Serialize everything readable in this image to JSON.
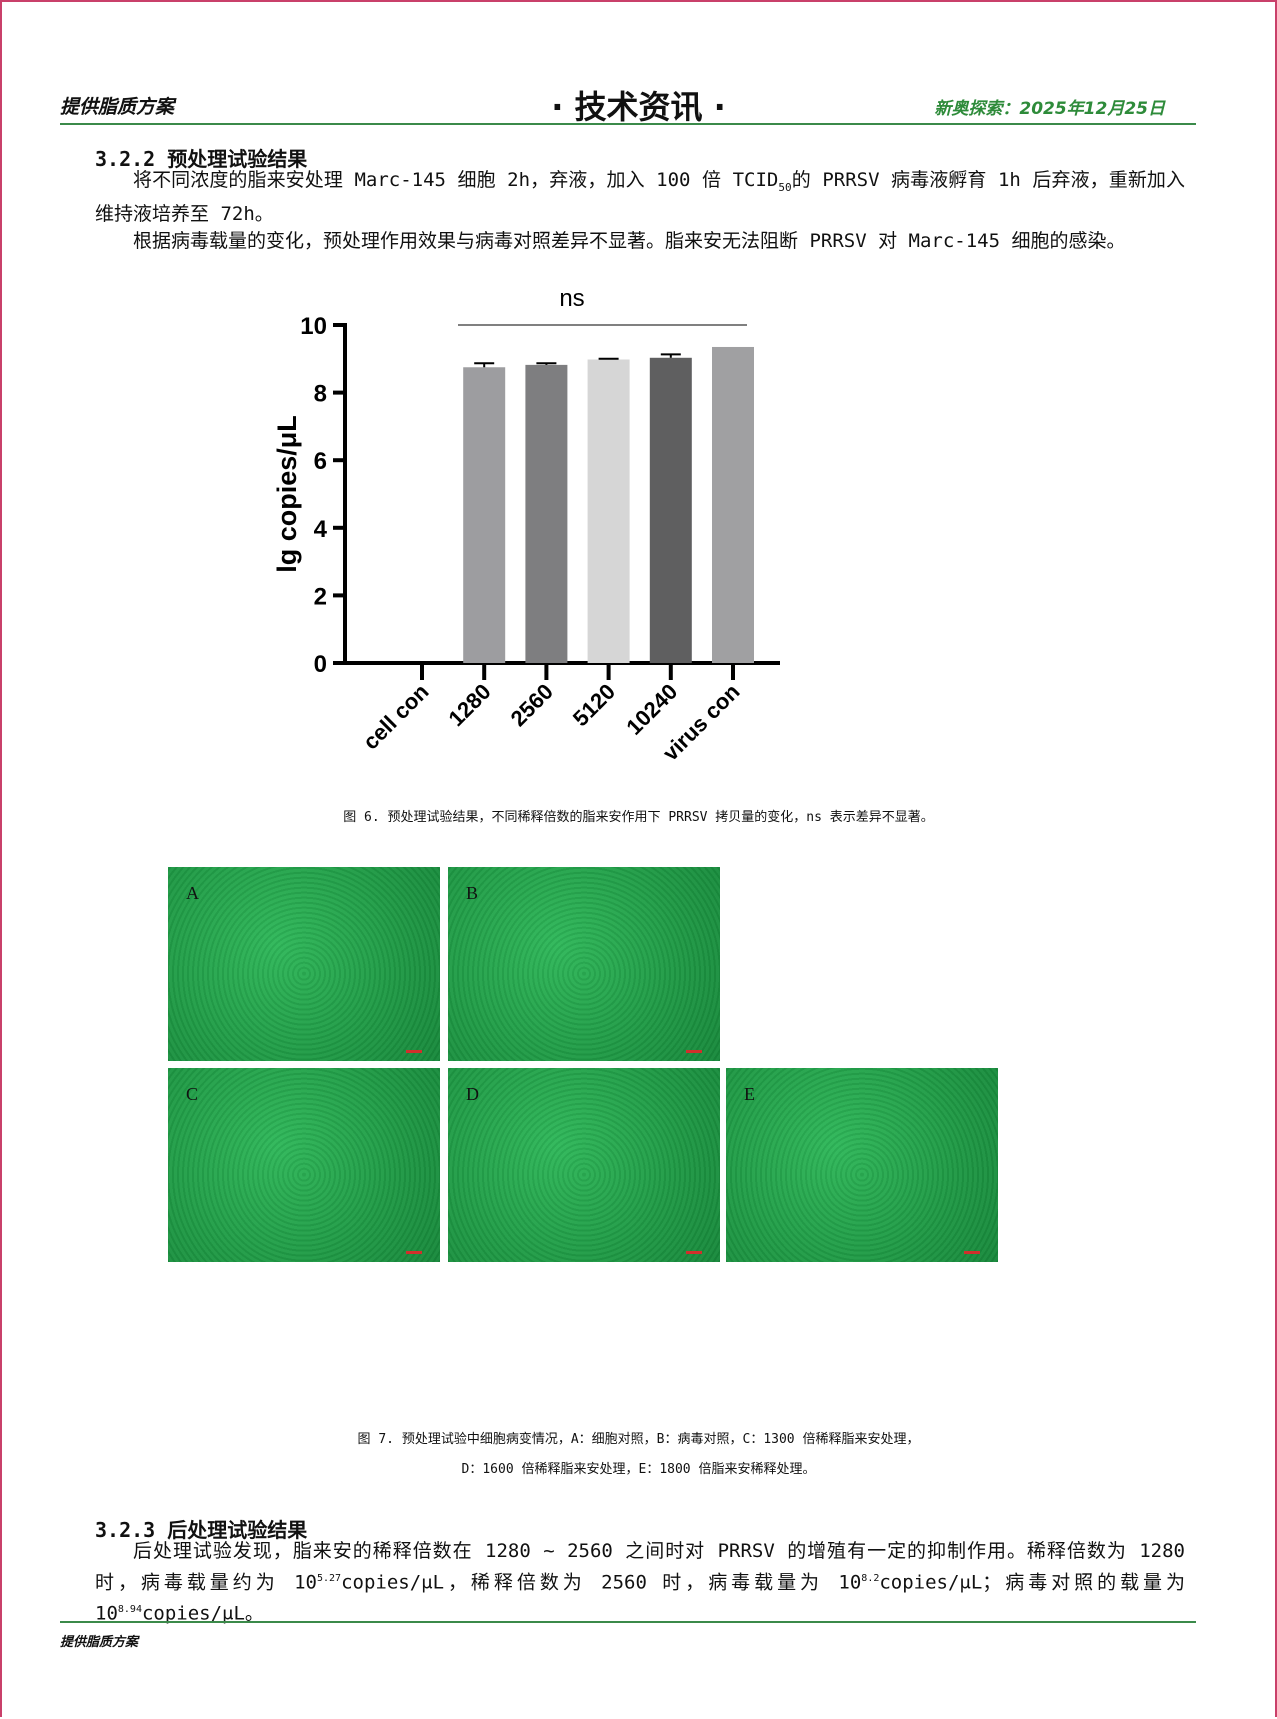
{
  "header": {
    "left": "提供脂质方案",
    "center": "· 技术资讯 ·",
    "right": "新奥探索：2025年12月25日"
  },
  "section1": {
    "heading": "3.2.2 预处理试验结果",
    "p1_a": "将不同浓度的脂来安处理 Marc-145 细胞 2h，弃液，加入 100 倍 TCID",
    "p1_sub": "50",
    "p1_b": "的 PRRSV 病毒液孵育 1h 后弃液，重新加入维持液培养至 72h。",
    "p2": "根据病毒载量的变化，预处理作用效果与病毒对照差异不显著。脂来安无法阻断 PRRSV 对 Marc-145 细胞的感染。"
  },
  "chart_data": {
    "type": "bar",
    "categories": [
      "cell con",
      "1280",
      "2560",
      "5120",
      "10240",
      "virus con"
    ],
    "values": [
      0,
      8.75,
      8.82,
      8.98,
      9.03,
      9.35
    ],
    "errors": [
      0,
      0.12,
      0.05,
      0.02,
      0.1,
      0
    ],
    "colors": [
      "#9a9a9c",
      "#9d9da0",
      "#7e7e80",
      "#d6d6d6",
      "#5f5f60",
      "#a0a0a2"
    ],
    "ylabel": "lg copies/μL",
    "ylim": [
      0,
      10
    ],
    "yticks": [
      "0",
      "2",
      "4",
      "6",
      "8",
      "10"
    ],
    "annotation": "ns",
    "grid": false
  },
  "fig6_caption": "图 6. 预处理试验结果，不同稀释倍数的脂来安作用下 PRRSV 拷贝量的变化，ns 表示差异不显著。",
  "photos": [
    {
      "label": "A"
    },
    {
      "label": "B"
    },
    {
      "label": "C"
    },
    {
      "label": "D"
    },
    {
      "label": "E"
    }
  ],
  "fig7_caption_l1": "图 7. 预处理试验中细胞病变情况，A：细胞对照，B：病毒对照，C：1300 倍稀释脂来安处理，",
  "fig7_caption_l2": "D：1600 倍稀释脂来安处理，E：1800 倍脂来安稀释处理。",
  "section2": {
    "heading": "3.2.3 后处理试验结果",
    "t1": "后处理试验发现，脂来安的稀释倍数在 1280 ~ 2560 之间时对 PRRSV 的增殖有一定的抑制作用。稀释倍数为 1280 时，病毒载量约为 10",
    "s1": "5.27",
    "t2": "copies/μL，稀释倍数为 2560 时，病毒载量为 10",
    "s2": "8.2",
    "t3": "copies/μL；病毒对照的载量为 10",
    "s3": "8.94",
    "t4": "copies/μL。"
  },
  "footer": "提供脂质方案"
}
